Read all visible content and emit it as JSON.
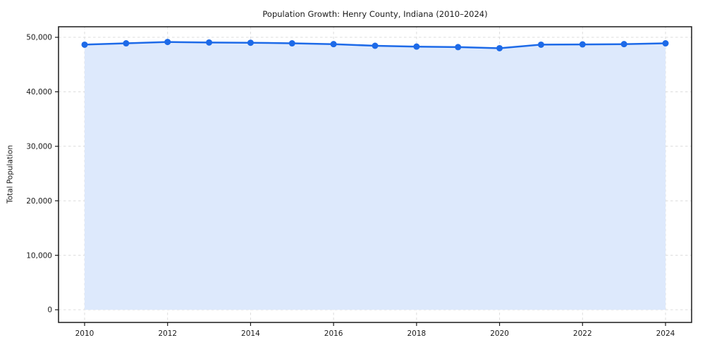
{
  "chart_data": {
    "type": "area",
    "title": "Population Growth: Henry County, Indiana (2010–2024)",
    "xlabel": "",
    "ylabel": "Total Population",
    "x": [
      2010,
      2011,
      2012,
      2013,
      2014,
      2015,
      2016,
      2017,
      2018,
      2019,
      2020,
      2021,
      2022,
      2023,
      2024
    ],
    "series": [
      {
        "name": "Total Population",
        "values": [
          48650,
          48900,
          49150,
          49050,
          49000,
          48900,
          48750,
          48450,
          48300,
          48200,
          48000,
          48650,
          48700,
          48750,
          48900
        ]
      }
    ],
    "xticks": [
      2010,
      2012,
      2014,
      2016,
      2018,
      2020,
      2022,
      2024
    ],
    "xtick_labels": [
      "2010",
      "2012",
      "2014",
      "2016",
      "2018",
      "2020",
      "2022",
      "2024"
    ],
    "yticks": [
      0,
      10000,
      20000,
      30000,
      40000,
      50000
    ],
    "ytick_labels": [
      "0",
      "10,000",
      "20,000",
      "30,000",
      "40,000",
      "50,000"
    ],
    "xlim": [
      2009.37,
      2024.63
    ],
    "ylim": [
      -2300,
      51900
    ],
    "grid": true,
    "grid_style": "dashed",
    "legend": null,
    "marker": "circle",
    "colors": {
      "line": "#1d6ae8",
      "fill": "#dde9fc",
      "grid": "#dcdcdc",
      "spine": "#1a1a1a",
      "text": "#1a1a1a",
      "background": "#ffffff"
    }
  }
}
